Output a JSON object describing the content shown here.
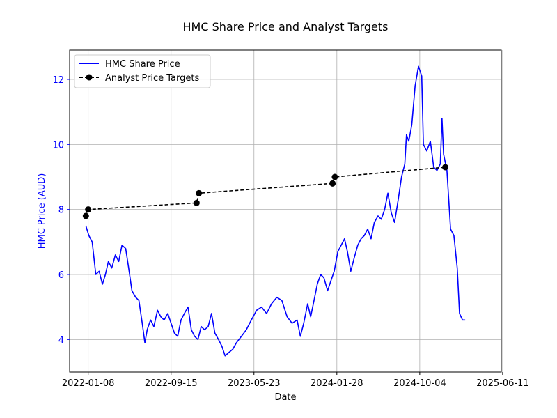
{
  "chart_data": {
    "type": "line",
    "title": "HMC Share Price and Analyst Targets",
    "xlabel": "Date",
    "ylabel": "HMC Price (AUD)",
    "x_ticks": [
      "2022-01-08",
      "2022-09-15",
      "2023-05-23",
      "2024-01-28",
      "2024-10-04",
      "2025-06-11"
    ],
    "y_ticks": [
      "4",
      "6",
      "8",
      "10",
      "12"
    ],
    "xlim": [
      "2021-11-13",
      "2025-06-07"
    ],
    "ylim": [
      3.0,
      12.9
    ],
    "grid": true,
    "legend": "top-left",
    "colors": {
      "price": "#0000ff",
      "targets": "#000000",
      "ylabel": "#0000ff"
    },
    "series": [
      {
        "name": "HMC Share Price",
        "style": "solid",
        "points": [
          [
            "2022-01-01",
            7.5
          ],
          [
            "2022-01-10",
            7.2
          ],
          [
            "2022-01-20",
            7.0
          ],
          [
            "2022-01-31",
            6.0
          ],
          [
            "2022-02-10",
            6.1
          ],
          [
            "2022-02-20",
            5.7
          ],
          [
            "2022-03-01",
            6.0
          ],
          [
            "2022-03-10",
            6.4
          ],
          [
            "2022-03-20",
            6.2
          ],
          [
            "2022-03-31",
            6.6
          ],
          [
            "2022-04-10",
            6.4
          ],
          [
            "2022-04-20",
            6.9
          ],
          [
            "2022-05-01",
            6.8
          ],
          [
            "2022-05-10",
            6.2
          ],
          [
            "2022-05-20",
            5.5
          ],
          [
            "2022-05-31",
            5.3
          ],
          [
            "2022-06-10",
            5.2
          ],
          [
            "2022-06-20",
            4.5
          ],
          [
            "2022-06-28",
            3.9
          ],
          [
            "2022-07-05",
            4.3
          ],
          [
            "2022-07-15",
            4.6
          ],
          [
            "2022-07-25",
            4.4
          ],
          [
            "2022-08-05",
            4.9
          ],
          [
            "2022-08-15",
            4.7
          ],
          [
            "2022-08-25",
            4.6
          ],
          [
            "2022-09-05",
            4.8
          ],
          [
            "2022-09-15",
            4.5
          ],
          [
            "2022-09-25",
            4.2
          ],
          [
            "2022-10-05",
            4.1
          ],
          [
            "2022-10-15",
            4.6
          ],
          [
            "2022-10-25",
            4.8
          ],
          [
            "2022-11-05",
            5.0
          ],
          [
            "2022-11-15",
            4.3
          ],
          [
            "2022-11-25",
            4.1
          ],
          [
            "2022-12-05",
            4.0
          ],
          [
            "2022-12-15",
            4.4
          ],
          [
            "2022-12-25",
            4.3
          ],
          [
            "2023-01-05",
            4.4
          ],
          [
            "2023-01-15",
            4.8
          ],
          [
            "2023-01-25",
            4.2
          ],
          [
            "2023-02-05",
            4.0
          ],
          [
            "2023-02-15",
            3.8
          ],
          [
            "2023-02-25",
            3.5
          ],
          [
            "2023-03-08",
            3.6
          ],
          [
            "2023-03-20",
            3.7
          ],
          [
            "2023-03-31",
            3.9
          ],
          [
            "2023-04-15",
            4.1
          ],
          [
            "2023-04-30",
            4.3
          ],
          [
            "2023-05-15",
            4.6
          ],
          [
            "2023-05-31",
            4.9
          ],
          [
            "2023-06-15",
            5.0
          ],
          [
            "2023-06-30",
            4.8
          ],
          [
            "2023-07-15",
            5.1
          ],
          [
            "2023-07-31",
            5.3
          ],
          [
            "2023-08-15",
            5.2
          ],
          [
            "2023-08-31",
            4.7
          ],
          [
            "2023-09-15",
            4.5
          ],
          [
            "2023-09-30",
            4.6
          ],
          [
            "2023-10-10",
            4.1
          ],
          [
            "2023-10-20",
            4.5
          ],
          [
            "2023-11-01",
            5.1
          ],
          [
            "2023-11-10",
            4.7
          ],
          [
            "2023-11-20",
            5.2
          ],
          [
            "2023-11-30",
            5.7
          ],
          [
            "2023-12-10",
            6.0
          ],
          [
            "2023-12-20",
            5.9
          ],
          [
            "2023-12-31",
            5.5
          ],
          [
            "2024-01-10",
            5.8
          ],
          [
            "2024-01-20",
            6.1
          ],
          [
            "2024-01-31",
            6.7
          ],
          [
            "2024-02-10",
            6.9
          ],
          [
            "2024-02-20",
            7.1
          ],
          [
            "2024-02-29",
            6.7
          ],
          [
            "2024-03-10",
            6.1
          ],
          [
            "2024-03-20",
            6.5
          ],
          [
            "2024-03-31",
            6.9
          ],
          [
            "2024-04-10",
            7.1
          ],
          [
            "2024-04-20",
            7.2
          ],
          [
            "2024-04-30",
            7.4
          ],
          [
            "2024-05-10",
            7.1
          ],
          [
            "2024-05-20",
            7.6
          ],
          [
            "2024-05-31",
            7.8
          ],
          [
            "2024-06-10",
            7.7
          ],
          [
            "2024-06-20",
            8.0
          ],
          [
            "2024-06-30",
            8.5
          ],
          [
            "2024-07-10",
            7.9
          ],
          [
            "2024-07-20",
            7.6
          ],
          [
            "2024-07-31",
            8.3
          ],
          [
            "2024-08-10",
            9.0
          ],
          [
            "2024-08-20",
            9.4
          ],
          [
            "2024-08-25",
            10.3
          ],
          [
            "2024-09-01",
            10.1
          ],
          [
            "2024-09-10",
            10.6
          ],
          [
            "2024-09-20",
            11.8
          ],
          [
            "2024-09-30",
            12.4
          ],
          [
            "2024-10-10",
            12.1
          ],
          [
            "2024-10-15",
            10.0
          ],
          [
            "2024-10-25",
            9.8
          ],
          [
            "2024-11-05",
            10.1
          ],
          [
            "2024-11-15",
            9.3
          ],
          [
            "2024-11-25",
            9.2
          ],
          [
            "2024-12-05",
            9.4
          ],
          [
            "2024-12-10",
            10.8
          ],
          [
            "2024-12-15",
            9.7
          ],
          [
            "2024-12-25",
            9.2
          ],
          [
            "2025-01-05",
            7.4
          ],
          [
            "2025-01-15",
            7.2
          ],
          [
            "2025-01-25",
            6.2
          ],
          [
            "2025-02-01",
            4.8
          ],
          [
            "2025-02-10",
            4.6
          ],
          [
            "2025-02-18",
            4.6
          ]
        ]
      },
      {
        "name": "Analyst Price Targets",
        "style": "dashed",
        "marker": "circle",
        "points": [
          [
            "2022-01-01",
            7.8
          ],
          [
            "2022-01-08",
            8.0
          ],
          [
            "2022-12-01",
            8.2
          ],
          [
            "2022-12-08",
            8.5
          ],
          [
            "2024-01-15",
            8.8
          ],
          [
            "2024-01-22",
            9.0
          ],
          [
            "2024-12-20",
            9.3
          ]
        ]
      }
    ]
  }
}
